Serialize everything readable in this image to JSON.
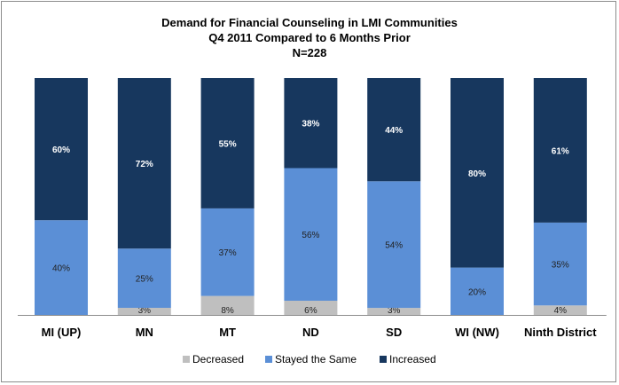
{
  "chart_data": {
    "type": "bar",
    "stacked": true,
    "percent_stacked": true,
    "title_lines": [
      "Demand for Financial  Counseling in LMI Communities",
      "Q4 2011 Compared to 6 Months Prior",
      "N=228"
    ],
    "xlabel": "",
    "ylabel": "",
    "ylim": [
      0,
      100
    ],
    "grid": false,
    "legend_position": "bottom",
    "categories": [
      "MI (UP)",
      "MN",
      "MT",
      "ND",
      "SD",
      "WI (NW)",
      "Ninth District"
    ],
    "series": [
      {
        "name": "Decreased",
        "values": [
          0,
          3,
          8,
          6,
          3,
          0,
          4
        ],
        "labels": [
          "",
          "3%",
          "8%",
          "6%",
          "3%",
          "",
          "4%"
        ],
        "color": "#bfbfbf"
      },
      {
        "name": "Stayed the Same",
        "values": [
          40,
          25,
          37,
          56,
          54,
          20,
          35
        ],
        "labels": [
          "40%",
          "25%",
          "37%",
          "56%",
          "54%",
          "20%",
          "35%"
        ],
        "color": "#5b8fd6"
      },
      {
        "name": "Increased",
        "values": [
          60,
          72,
          55,
          38,
          44,
          80,
          61
        ],
        "labels": [
          "60%",
          "72%",
          "55%",
          "38%",
          "44%",
          "80%",
          "61%"
        ],
        "color": "#17375e"
      }
    ]
  }
}
